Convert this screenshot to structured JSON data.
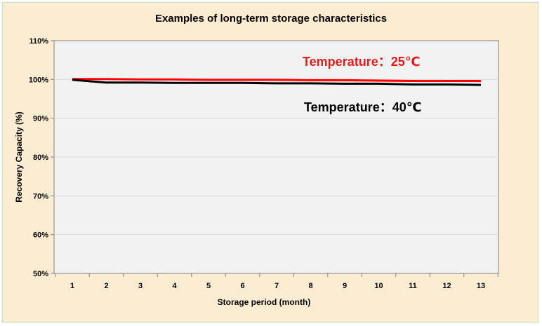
{
  "chart_data": {
    "type": "line",
    "title": "Examples of long-term storage characteristics",
    "xlabel": "Storage period (month)",
    "ylabel": "Recovery Capacity (%)",
    "x": [
      1,
      2,
      3,
      4,
      5,
      6,
      7,
      8,
      9,
      10,
      11,
      12,
      13
    ],
    "ylim": [
      50,
      110
    ],
    "yticks": [
      50,
      60,
      70,
      80,
      90,
      100,
      110
    ],
    "ytick_labels": [
      "50%",
      "60%",
      "70%",
      "80%",
      "90%",
      "100%",
      "110%"
    ],
    "grid": true,
    "series": [
      {
        "name": "Temperature：25℃",
        "color": "#ff0000",
        "values": [
          100.1,
          100.1,
          100.0,
          100.0,
          99.9,
          99.9,
          99.9,
          99.8,
          99.8,
          99.7,
          99.6,
          99.6,
          99.6
        ]
      },
      {
        "name": "Temperature：40℃",
        "color": "#000000",
        "values": [
          99.9,
          99.2,
          99.2,
          99.1,
          99.1,
          99.1,
          99.0,
          99.0,
          98.9,
          98.9,
          98.7,
          98.7,
          98.6
        ]
      }
    ],
    "annotations": [
      {
        "text": "Temperature：25℃",
        "color": "#e8191b"
      },
      {
        "text": "Temperature：40℃",
        "color": "#000000"
      }
    ],
    "colors": {
      "background": "#fcecd2",
      "plot_area": "#f2f2f2",
      "gridline": "#d9d9d9",
      "border": "#bfe7b6"
    }
  }
}
